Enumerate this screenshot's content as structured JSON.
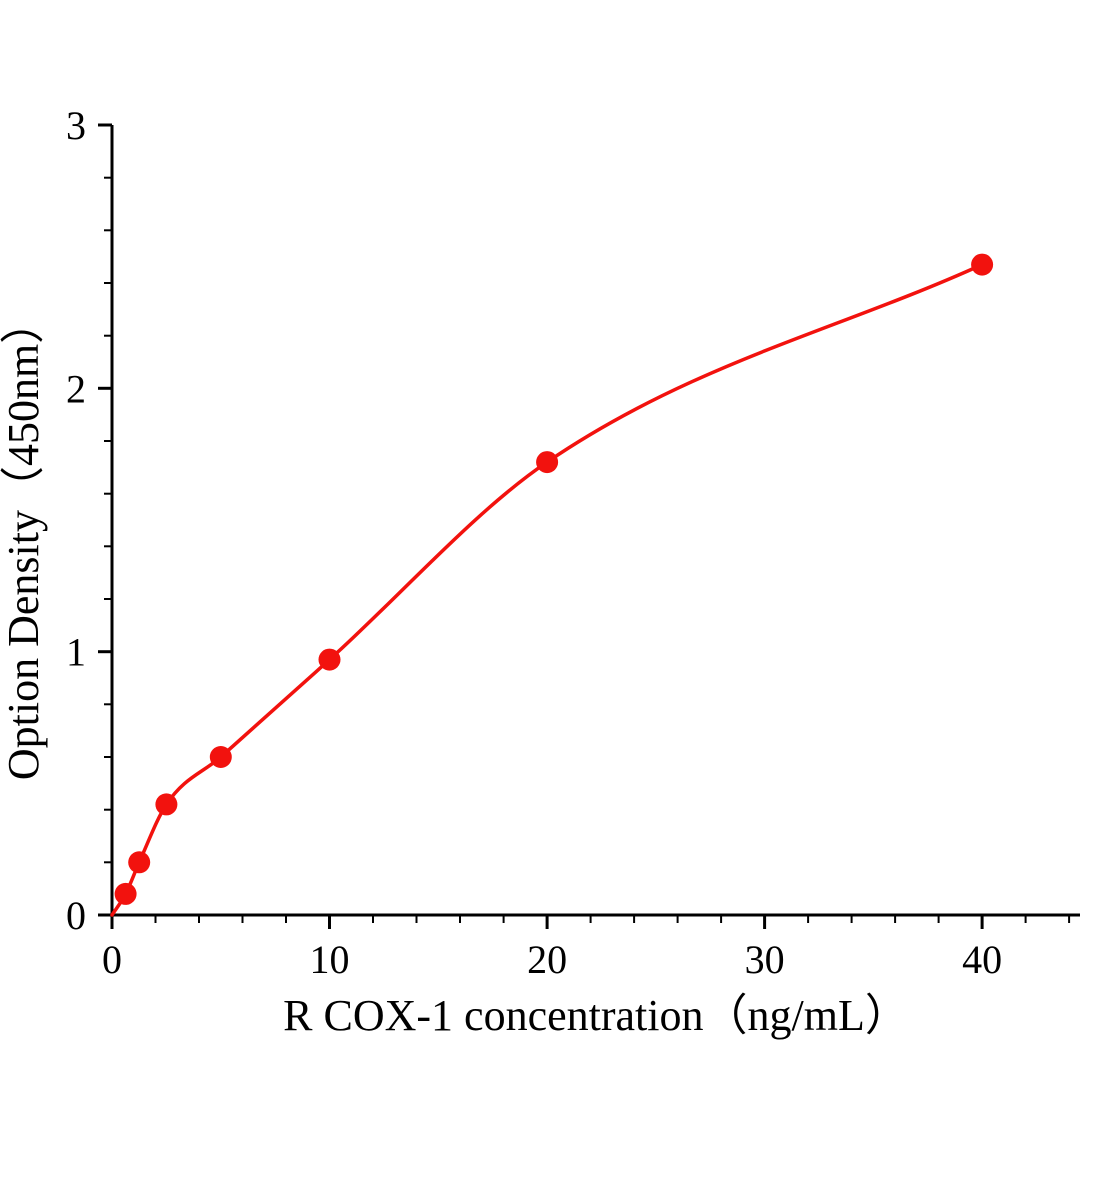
{
  "figure": {
    "background": "#ffffff"
  },
  "chart_data": {
    "type": "scatter",
    "title": "",
    "xlabel": "R COX-1  concentration（ng/mL）",
    "ylabel": "Option Density（450nm）",
    "x": [
      0.625,
      1.25,
      2.5,
      5,
      10,
      20,
      40
    ],
    "y": [
      0.08,
      0.2,
      0.42,
      0.6,
      0.97,
      1.72,
      2.47
    ],
    "curve_anchor_x": 0,
    "curve_anchor_y": 0,
    "xlim": [
      0,
      44.5
    ],
    "ylim": [
      0,
      3
    ],
    "x_major_ticks": [
      0,
      10,
      20,
      30,
      40
    ],
    "y_major_ticks": [
      0,
      1,
      2,
      3
    ],
    "x_minor_step": 2,
    "y_minor_step": 0.2,
    "marker_color": "#f2120e",
    "line_color": "#f2120e",
    "axis_color": "#000000",
    "grid": false,
    "legend_position": "none"
  }
}
